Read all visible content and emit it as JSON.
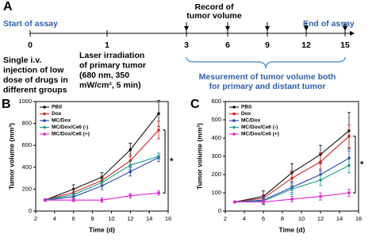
{
  "timeline": {
    "panel": "A",
    "start": "Start of assay",
    "end": "End of assay",
    "record": [
      "Record of",
      "tumor volume"
    ],
    "ticks": [
      "0",
      "1",
      "3",
      "6",
      "9",
      "12",
      "15"
    ],
    "note_injection": [
      "Single i.v.",
      "injection of low",
      "dose of drugs in",
      "different groups"
    ],
    "note_laser": [
      "Laser irradiation",
      "of primary tumor",
      "(680 nm, 350",
      "mW/cm², 5 min)"
    ],
    "note_measure": [
      "Mesurement of tumor volume both",
      "for primary and distant tumor"
    ]
  },
  "chart_data": [
    {
      "type": "line",
      "panel": "B",
      "xlabel": "Time (d)",
      "ylabel": "Tumor volume (mm³)",
      "annotation": "*",
      "xlim": [
        2,
        16
      ],
      "xticks": [
        2,
        4,
        6,
        8,
        10,
        12,
        14,
        16
      ],
      "ylim": [
        0,
        1000
      ],
      "yticks": [
        0,
        200,
        400,
        600,
        800,
        1000
      ],
      "x": [
        3,
        6,
        9,
        12,
        15
      ],
      "series": [
        {
          "name": "PBS",
          "color": "#111111",
          "values": [
            100,
            200,
            310,
            560,
            890
          ],
          "errors": [
            10,
            40,
            40,
            60,
            120
          ]
        },
        {
          "name": "Dox",
          "color": "#d42020",
          "values": [
            100,
            170,
            280,
            460,
            740
          ],
          "errors": [
            10,
            30,
            40,
            60,
            80
          ]
        },
        {
          "name": "MC/Dox",
          "color": "#2a3fbf",
          "values": [
            100,
            130,
            230,
            360,
            490
          ],
          "errors": [
            10,
            25,
            35,
            40,
            40
          ]
        },
        {
          "name": "MC/Dox/Ce6 (-)",
          "color": "#1f9e8a",
          "values": [
            100,
            150,
            260,
            420,
            500
          ],
          "errors": [
            10,
            25,
            35,
            40,
            30
          ]
        },
        {
          "name": "MC/Dox/Ce6 (+)",
          "color": "#e020d0",
          "values": [
            100,
            100,
            100,
            140,
            165
          ],
          "errors": [
            10,
            15,
            20,
            20,
            20
          ]
        }
      ]
    },
    {
      "type": "line",
      "panel": "C",
      "xlabel": "Time (d)",
      "ylabel": "Tumor volume (mm³)",
      "annotation": "*",
      "xlim": [
        2,
        16
      ],
      "xticks": [
        2,
        4,
        6,
        8,
        10,
        12,
        14,
        16
      ],
      "ylim": [
        0,
        600
      ],
      "yticks": [
        0,
        100,
        200,
        300,
        400,
        500,
        600
      ],
      "x": [
        3,
        6,
        9,
        12,
        15
      ],
      "series": [
        {
          "name": "PBS",
          "color": "#111111",
          "values": [
            50,
            80,
            210,
            310,
            440
          ],
          "errors": [
            5,
            30,
            50,
            50,
            100
          ]
        },
        {
          "name": "Dox",
          "color": "#d42020",
          "values": [
            50,
            70,
            180,
            270,
            410
          ],
          "errors": [
            5,
            20,
            40,
            50,
            60
          ]
        },
        {
          "name": "MC/Dox",
          "color": "#2a3fbf",
          "values": [
            50,
            60,
            130,
            200,
            290
          ],
          "errors": [
            5,
            20,
            30,
            30,
            40
          ]
        },
        {
          "name": "MC/Dox/Ce6 (-)",
          "color": "#1f9e8a",
          "values": [
            50,
            55,
            120,
            170,
            250
          ],
          "errors": [
            5,
            20,
            30,
            30,
            40
          ]
        },
        {
          "name": "MC/Dox/Ce6 (+)",
          "color": "#e020d0",
          "values": [
            50,
            50,
            65,
            80,
            100
          ],
          "errors": [
            5,
            10,
            15,
            20,
            20
          ]
        }
      ]
    }
  ]
}
